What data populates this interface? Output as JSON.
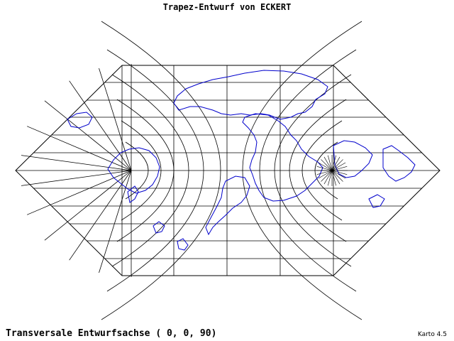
{
  "title": "Trapez-Entwurf von ECKERT",
  "axis_label": "Transversale Entwurfsachse ( 0, 0, 90)",
  "version": "Karto 4.5",
  "colors": {
    "graticule": "#000000",
    "coastline": "#0000cc",
    "background": "#ffffff"
  }
}
